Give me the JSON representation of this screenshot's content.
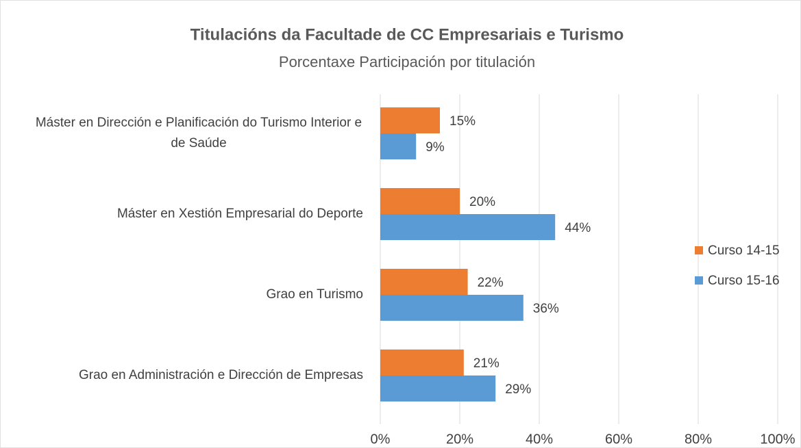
{
  "chart_data": {
    "type": "bar",
    "orientation": "horizontal",
    "title": "Titulacións da Facultade de CC Empresariais e Turismo",
    "subtitle": "Porcentaxe Participación por titulación",
    "categories": [
      "Máster en Dirección e Planificación do Turismo Interior e de Saúde",
      "Máster en Xestión Empresarial do Deporte",
      "Grao en Turismo",
      "Grao en Administración e Dirección de Empresas"
    ],
    "series": [
      {
        "name": "Curso 14-15",
        "color": "#ed7d31",
        "values": [
          15,
          20,
          22,
          21
        ],
        "value_labels": [
          "15%",
          "20%",
          "22%",
          "21%"
        ]
      },
      {
        "name": "Curso 15-16",
        "color": "#5b9bd5",
        "values": [
          9,
          44,
          36,
          29
        ],
        "value_labels": [
          "9%",
          "44%",
          "36%",
          "29%"
        ]
      }
    ],
    "xlim": [
      0,
      100
    ],
    "xticks": [
      {
        "value": 0,
        "label": "0%"
      },
      {
        "value": 20,
        "label": "20%"
      },
      {
        "value": 40,
        "label": "40%"
      },
      {
        "value": 60,
        "label": "60%"
      },
      {
        "value": 80,
        "label": "80%"
      },
      {
        "value": 100,
        "label": "100%"
      }
    ],
    "grid": true,
    "legend": "right"
  }
}
